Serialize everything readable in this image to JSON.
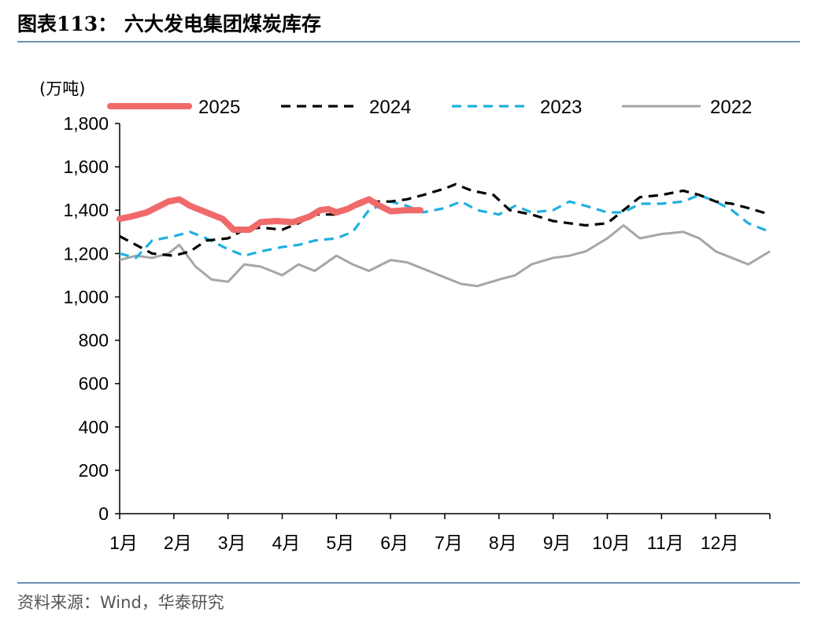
{
  "header": {
    "title": "图表113：  六大发电集团煤炭库存"
  },
  "footer": {
    "source": "资料来源：Wind，华泰研究"
  },
  "chart_data": {
    "type": "line",
    "ylabel": "(万吨)",
    "ylim": [
      0,
      1800
    ],
    "yticks": [
      "0",
      "200",
      "400",
      "600",
      "800",
      "1,000",
      "1,200",
      "1,400",
      "1,600",
      "1,800"
    ],
    "ytick_values": [
      0,
      200,
      400,
      600,
      800,
      1000,
      1200,
      1400,
      1600,
      1800
    ],
    "categories": [
      "1月",
      "2月",
      "3月",
      "4月",
      "5月",
      "6月",
      "7月",
      "8月",
      "9月",
      "10月",
      "11月",
      "12月"
    ],
    "legend_position": "top",
    "series": [
      {
        "name": "2025",
        "color": "#f06a6a",
        "style": "solid-thick",
        "x": [
          1.0,
          1.2,
          1.5,
          1.9,
          2.1,
          2.3,
          2.6,
          2.9,
          3.1,
          3.4,
          3.6,
          3.9,
          4.2,
          4.5,
          4.7,
          4.85,
          5.0,
          5.2,
          5.4,
          5.6,
          5.8,
          6.0,
          6.3,
          6.55
        ],
        "y": [
          1360,
          1370,
          1390,
          1440,
          1450,
          1420,
          1390,
          1360,
          1310,
          1310,
          1345,
          1350,
          1345,
          1370,
          1400,
          1405,
          1390,
          1405,
          1430,
          1450,
          1420,
          1395,
          1400,
          1400
        ]
      },
      {
        "name": "2024",
        "color": "#000000",
        "style": "dashed",
        "x": [
          1.0,
          1.3,
          1.6,
          2.0,
          2.3,
          2.6,
          3.0,
          3.3,
          3.6,
          4.0,
          4.3,
          4.6,
          5.0,
          5.3,
          5.6,
          6.0,
          6.3,
          6.6,
          7.0,
          7.2,
          7.5,
          7.9,
          8.2,
          8.6,
          9.0,
          9.3,
          9.6,
          10.0,
          10.3,
          10.6,
          11.0,
          11.4,
          11.7,
          12.0,
          12.3,
          12.6,
          13.0
        ],
        "y": [
          1280,
          1240,
          1200,
          1190,
          1210,
          1260,
          1270,
          1310,
          1320,
          1310,
          1340,
          1380,
          1380,
          1410,
          1440,
          1440,
          1450,
          1470,
          1500,
          1520,
          1490,
          1470,
          1400,
          1380,
          1350,
          1340,
          1330,
          1340,
          1400,
          1460,
          1470,
          1490,
          1470,
          1440,
          1430,
          1410,
          1380
        ]
      },
      {
        "name": "2023",
        "color": "#1fb0e0",
        "style": "dashed",
        "x": [
          1.0,
          1.3,
          1.6,
          2.0,
          2.3,
          2.6,
          3.0,
          3.3,
          3.6,
          4.0,
          4.3,
          4.6,
          5.0,
          5.3,
          5.6,
          6.0,
          6.3,
          6.6,
          7.0,
          7.3,
          7.6,
          8.0,
          8.3,
          8.6,
          9.0,
          9.3,
          9.6,
          10.0,
          10.3,
          10.6,
          11.0,
          11.4,
          11.7,
          12.0,
          12.3,
          12.6,
          13.0
        ],
        "y": [
          1200,
          1180,
          1260,
          1280,
          1300,
          1270,
          1220,
          1190,
          1210,
          1230,
          1240,
          1260,
          1270,
          1300,
          1400,
          1440,
          1420,
          1390,
          1410,
          1440,
          1400,
          1380,
          1420,
          1390,
          1400,
          1440,
          1420,
          1390,
          1390,
          1430,
          1430,
          1440,
          1470,
          1440,
          1400,
          1340,
          1300
        ]
      },
      {
        "name": "2022",
        "color": "#a6a6a6",
        "style": "solid",
        "x": [
          1.0,
          1.3,
          1.6,
          1.9,
          2.1,
          2.4,
          2.7,
          3.0,
          3.3,
          3.6,
          4.0,
          4.3,
          4.6,
          5.0,
          5.3,
          5.6,
          6.0,
          6.3,
          6.6,
          7.0,
          7.3,
          7.6,
          8.0,
          8.3,
          8.6,
          9.0,
          9.3,
          9.6,
          10.0,
          10.3,
          10.6,
          11.0,
          11.4,
          11.7,
          12.0,
          12.3,
          12.6,
          13.0
        ],
        "y": [
          1170,
          1190,
          1180,
          1200,
          1240,
          1140,
          1080,
          1070,
          1150,
          1140,
          1100,
          1150,
          1120,
          1190,
          1150,
          1120,
          1170,
          1160,
          1130,
          1090,
          1060,
          1050,
          1080,
          1100,
          1150,
          1180,
          1190,
          1210,
          1270,
          1330,
          1270,
          1290,
          1300,
          1270,
          1210,
          1180,
          1150,
          1210
        ]
      }
    ]
  }
}
